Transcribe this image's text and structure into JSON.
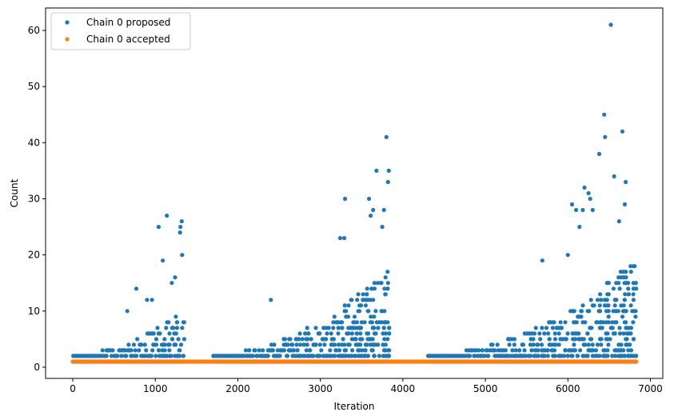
{
  "chart_data": {
    "type": "scatter",
    "xlabel": "Iteration",
    "ylabel": "Count",
    "xlim": [
      -330,
      7150
    ],
    "ylim": [
      -2,
      64
    ],
    "xticks": [
      0,
      1000,
      2000,
      3000,
      4000,
      5000,
      6000,
      7000
    ],
    "yticks": [
      0,
      10,
      20,
      30,
      40,
      50,
      60
    ],
    "grid": false,
    "legend": "upper-left",
    "series": [
      {
        "name": "Chain 0 proposed",
        "color": "#1f77b4",
        "segments": [
          {
            "x_start": 0,
            "x_end": 1350,
            "baseline": 1,
            "max_rise": 8
          },
          {
            "x_start": 1700,
            "x_end": 3840,
            "baseline": 1,
            "max_rise": 16
          },
          {
            "x_start": 4300,
            "x_end": 6830,
            "baseline": 1,
            "max_rise": 17
          }
        ],
        "notable_points": [
          {
            "x": 1040,
            "y": 25
          },
          {
            "x": 1140,
            "y": 27
          },
          {
            "x": 1090,
            "y": 19
          },
          {
            "x": 1300,
            "y": 24
          },
          {
            "x": 1305,
            "y": 25
          },
          {
            "x": 1320,
            "y": 26
          },
          {
            "x": 1325,
            "y": 20
          },
          {
            "x": 1240,
            "y": 16
          },
          {
            "x": 1200,
            "y": 15
          },
          {
            "x": 770,
            "y": 14
          },
          {
            "x": 660,
            "y": 10
          },
          {
            "x": 900,
            "y": 12
          },
          {
            "x": 960,
            "y": 12
          },
          {
            "x": 2400,
            "y": 12
          },
          {
            "x": 3240,
            "y": 23
          },
          {
            "x": 3290,
            "y": 23
          },
          {
            "x": 3300,
            "y": 30
          },
          {
            "x": 3590,
            "y": 30
          },
          {
            "x": 3610,
            "y": 27
          },
          {
            "x": 3640,
            "y": 28
          },
          {
            "x": 3680,
            "y": 35
          },
          {
            "x": 3750,
            "y": 25
          },
          {
            "x": 3770,
            "y": 28
          },
          {
            "x": 3800,
            "y": 41
          },
          {
            "x": 3820,
            "y": 33
          },
          {
            "x": 3830,
            "y": 35
          },
          {
            "x": 5690,
            "y": 19
          },
          {
            "x": 6000,
            "y": 20
          },
          {
            "x": 6050,
            "y": 29
          },
          {
            "x": 6100,
            "y": 28
          },
          {
            "x": 6140,
            "y": 25
          },
          {
            "x": 6180,
            "y": 28
          },
          {
            "x": 6200,
            "y": 32
          },
          {
            "x": 6250,
            "y": 31
          },
          {
            "x": 6270,
            "y": 30
          },
          {
            "x": 6300,
            "y": 28
          },
          {
            "x": 6380,
            "y": 38
          },
          {
            "x": 6440,
            "y": 45
          },
          {
            "x": 6450,
            "y": 41
          },
          {
            "x": 6520,
            "y": 61
          },
          {
            "x": 6560,
            "y": 34
          },
          {
            "x": 6620,
            "y": 26
          },
          {
            "x": 6660,
            "y": 42
          },
          {
            "x": 6700,
            "y": 33
          },
          {
            "x": 6690,
            "y": 29
          }
        ]
      },
      {
        "name": "Chain 0 accepted",
        "color": "#ff7f0e",
        "segments": [
          {
            "x_start": 0,
            "x_end": 6830,
            "baseline": 1,
            "max_rise": 0
          }
        ],
        "notable_points": []
      }
    ]
  }
}
